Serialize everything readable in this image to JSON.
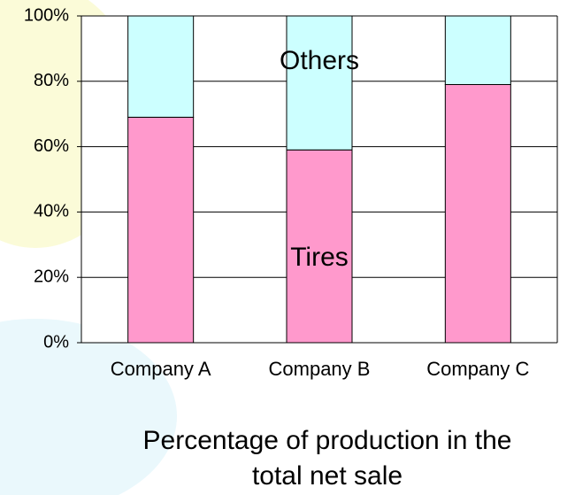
{
  "chart_data": {
    "type": "stacked-bar",
    "title": "Percentage of production in the total net sale",
    "categories": [
      "Company A",
      "Company B",
      "Company C"
    ],
    "series": [
      {
        "name": "Tires",
        "color": "#ff99cc",
        "values": [
          69,
          59,
          79
        ]
      },
      {
        "name": "Others",
        "color": "#ccffff",
        "values": [
          31,
          41,
          21
        ]
      }
    ],
    "ylim": [
      0,
      100
    ],
    "yticks": [
      {
        "value": 0,
        "label": "0%"
      },
      {
        "value": 20,
        "label": "20%"
      },
      {
        "value": 40,
        "label": "40%"
      },
      {
        "value": 60,
        "label": "60%"
      },
      {
        "value": 80,
        "label": "80%"
      },
      {
        "value": 100,
        "label": "100%"
      }
    ],
    "grid": true
  }
}
